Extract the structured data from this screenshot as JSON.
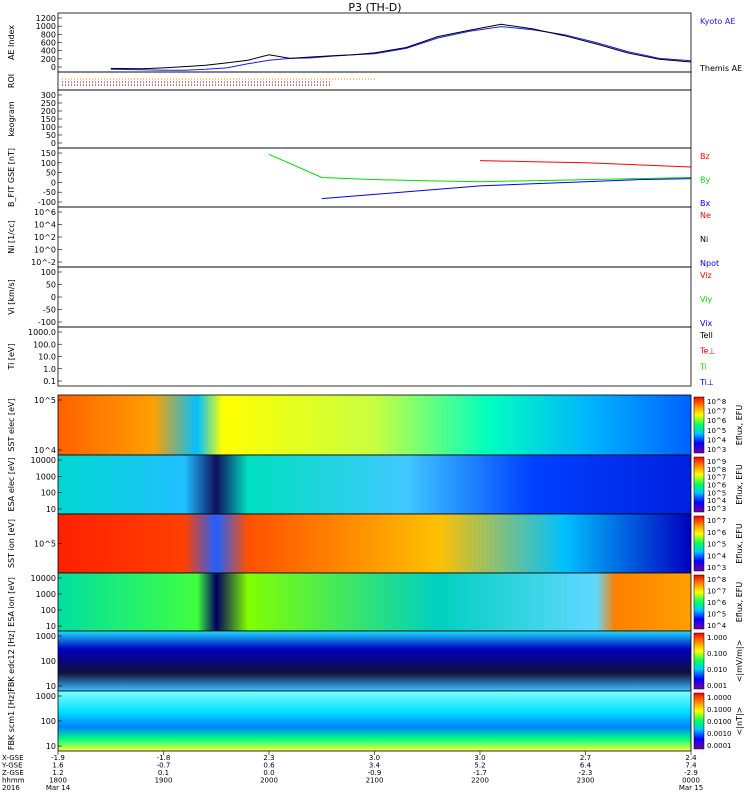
{
  "title": "P3 (TH-D)",
  "colors": {
    "kyoto": "#1a1aff",
    "themis": "#000000",
    "red": "#ff0000",
    "green": "#00dd00",
    "blue": "#0000ff",
    "black": "#000000"
  },
  "chart_data": [
    {
      "type": "line",
      "id": "ae",
      "ylabel": "AE Index",
      "yticks": [
        "1200",
        "1000",
        "800",
        "600",
        "400",
        "200",
        "0"
      ],
      "ylim": [
        0,
        1300
      ],
      "x_hours": [
        18.5,
        18.8,
        19.0,
        19.2,
        19.4,
        19.6,
        19.8,
        20.0,
        20.2,
        20.4,
        20.6,
        20.8,
        21.0,
        21.3,
        21.6,
        21.9,
        22.2,
        22.5,
        22.8,
        23.1,
        23.4,
        23.7,
        24.0
      ],
      "series": [
        {
          "name": "Kyoto AE",
          "values": [
            60,
            50,
            40,
            40,
            60,
            90,
            180,
            260,
            300,
            310,
            350,
            380,
            400,
            520,
            750,
            900,
            1000,
            930,
            820,
            650,
            450,
            300,
            250
          ]
        },
        {
          "name": "Themis AE",
          "values": [
            80,
            70,
            90,
            120,
            150,
            200,
            260,
            380,
            300,
            330,
            360,
            380,
            420,
            540,
            780,
            920,
            1050,
            950,
            800,
            620,
            420,
            280,
            220
          ]
        }
      ]
    },
    {
      "type": "line",
      "id": "roi",
      "ylabel": "ROI",
      "yticks": [],
      "ylim": [
        0,
        1
      ]
    },
    {
      "type": "line",
      "id": "keogram",
      "ylabel": "keogram",
      "yticks": [
        "300",
        "250",
        "200",
        "150",
        "100",
        "50",
        "0"
      ],
      "ylim": [
        0,
        300
      ]
    },
    {
      "type": "line",
      "id": "bfield",
      "ylabel": "B_FIT GSE [nT]",
      "yticks": [
        "150",
        "100",
        "50",
        "0",
        "-50",
        "-100"
      ],
      "ylim": [
        -120,
        160
      ],
      "x_hours": [
        20.0,
        20.5,
        21.0,
        21.5,
        22.0,
        22.5,
        23.0,
        23.5,
        24.0
      ],
      "series": [
        {
          "name": "Bz",
          "values": [
            null,
            null,
            null,
            null,
            100,
            95,
            90,
            80,
            70
          ]
        },
        {
          "name": "By",
          "values": [
            130,
            20,
            10,
            5,
            0,
            5,
            10,
            15,
            20
          ]
        },
        {
          "name": "Bx",
          "values": [
            null,
            -80,
            -60,
            -40,
            -20,
            -10,
            0,
            10,
            15
          ]
        }
      ]
    },
    {
      "type": "line",
      "id": "density",
      "ylabel": "Ni [1/cc]",
      "yticks": [
        "10^6",
        "10^4",
        "10^2",
        "10^0",
        "10^-2"
      ],
      "ylim": [
        -3,
        6
      ],
      "series": [
        {
          "name": "Ne"
        },
        {
          "name": "Ni"
        },
        {
          "name": "Npot"
        }
      ]
    },
    {
      "type": "line",
      "id": "velocity",
      "ylabel": "Vi [km/s]",
      "yticks": [
        "100",
        "50",
        "0",
        "-50",
        "-100"
      ],
      "ylim": [
        -130,
        130
      ],
      "series": [
        {
          "name": "Viz"
        },
        {
          "name": "Viy"
        },
        {
          "name": "Vix"
        }
      ]
    },
    {
      "type": "line",
      "id": "temperature",
      "ylabel": "Ti [eV]",
      "yticks": [
        "1000.0",
        "100.0",
        "10.0",
        "1.0",
        "0.1"
      ],
      "ylim": [
        -1,
        3.5
      ],
      "series": [
        {
          "name": "Tell"
        },
        {
          "name": "Te⊥"
        },
        {
          "name": "Ti"
        },
        {
          "name": "Ti⊥"
        }
      ]
    },
    {
      "type": "heatmap",
      "id": "sst_e",
      "ylabel": "SST elec [eV]",
      "yticks": [
        "10^5",
        "10^4"
      ],
      "colorbar": {
        "label": "Eflux, EFU",
        "ticks": [
          "10^8",
          "10^7",
          "10^6",
          "10^5",
          "10^4",
          "10^3"
        ]
      }
    },
    {
      "type": "heatmap",
      "id": "esa_e",
      "ylabel": "ESA elec [eV]",
      "yticks": [
        "10000",
        "1000",
        "100",
        "10"
      ],
      "colorbar": {
        "label": "Eflux, EFU",
        "ticks": [
          "10^9",
          "10^8",
          "10^7",
          "10^6",
          "10^5",
          "10^4",
          "10^3"
        ]
      }
    },
    {
      "type": "heatmap",
      "id": "sst_i",
      "ylabel": "SST ion [eV]",
      "yticks": [
        "10^5"
      ],
      "colorbar": {
        "label": "Eflux, EFU",
        "ticks": [
          "10^7",
          "10^6",
          "10^5",
          "10^4",
          "10^3"
        ]
      }
    },
    {
      "type": "heatmap",
      "id": "esa_i",
      "ylabel": "ESA ion [eV]",
      "yticks": [
        "10000",
        "1000",
        "100",
        "10"
      ],
      "colorbar": {
        "label": "Eflux, EFU",
        "ticks": [
          "10^8",
          "10^7",
          "10^6",
          "10^5",
          "10^4"
        ]
      }
    },
    {
      "type": "heatmap",
      "id": "fbk_e",
      "ylabel": "FBK edc12 [Hz]",
      "yticks": [
        "1000",
        "100",
        "10"
      ],
      "colorbar": {
        "label": "<|mV/m|>",
        "ticks": [
          "1.000",
          "0.100",
          "0.010",
          "0.001"
        ]
      }
    },
    {
      "type": "heatmap",
      "id": "fbk_b",
      "ylabel": "FBK scm1 [Hz]",
      "yticks": [
        "1000",
        "100",
        "10"
      ],
      "colorbar": {
        "label": "<|nT|>",
        "ticks": [
          "1.0000",
          "0.1000",
          "0.0100",
          "0.0010",
          "0.0001"
        ]
      }
    }
  ],
  "xaxis": {
    "row_labels": [
      "X-GSE",
      "Y-GSE",
      "Z-GSE",
      "hhmm",
      "2016"
    ],
    "columns": [
      {
        "x": "-1.9",
        "y": "1.6",
        "z": "1.2",
        "time": "1800",
        "date": "Mar 14"
      },
      {
        "x": "-1.8",
        "y": "-0.7",
        "z": "0.1",
        "time": "1900",
        "date": ""
      },
      {
        "x": "2.3",
        "y": "0.6",
        "z": "0.0",
        "time": "2000",
        "date": ""
      },
      {
        "x": "3.0",
        "y": "3.4",
        "z": "-0.9",
        "time": "2100",
        "date": ""
      },
      {
        "x": "3.0",
        "y": "5.2",
        "z": "-1.7",
        "time": "2200",
        "date": ""
      },
      {
        "x": "2.7",
        "y": "6.4",
        "z": "-2.3",
        "time": "2300",
        "date": ""
      },
      {
        "x": "2.4",
        "y": "7.4",
        "z": "-2.9",
        "time": "0000",
        "date": "Mar 15"
      }
    ]
  }
}
